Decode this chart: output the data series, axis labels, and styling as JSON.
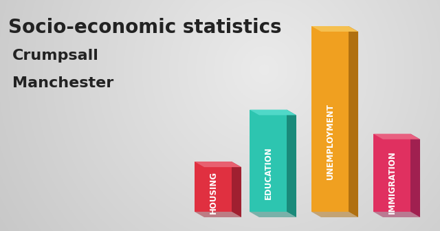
{
  "title": "Socio-economic statistics",
  "subtitle1": "Crumpsall",
  "subtitle2": "Manchester",
  "categories": [
    "HOUSING",
    "EDUCATION",
    "UNEMPLOYMENT",
    "IMMIGRATION"
  ],
  "values": [
    0.27,
    0.55,
    1.0,
    0.42
  ],
  "bar_colors": [
    "#E03040",
    "#2DC5B0",
    "#F0A020",
    "#E03060"
  ],
  "bar_side_colors": [
    "#A02030",
    "#1A8A7A",
    "#B07010",
    "#A02050"
  ],
  "bar_top_colors": [
    "#E86070",
    "#50D8C8",
    "#F5C050",
    "#E86080"
  ],
  "bg_color": "#D0D0D0",
  "title_color": "#222222",
  "label_color": "#FFFFFF",
  "label_fontsize": 8.5,
  "title_fontsize": 20,
  "subtitle_fontsize": 16
}
